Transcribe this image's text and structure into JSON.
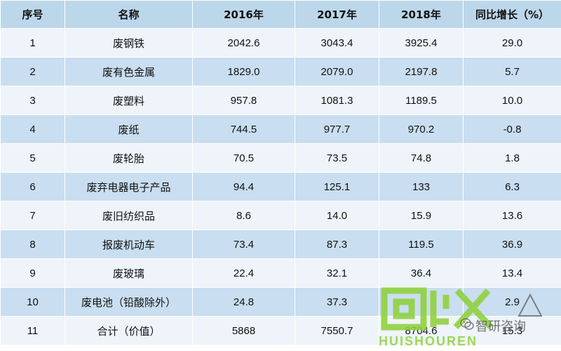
{
  "table": {
    "headers": [
      "序号",
      "名称",
      "2016年",
      "2017年",
      "2018年",
      "同比增长（%）"
    ],
    "rows": [
      [
        "1",
        "废钢铁",
        "2042.6",
        "3043.4",
        "3925.4",
        "29.0"
      ],
      [
        "2",
        "废有色金属",
        "1829.0",
        "2079.0",
        "2197.8",
        "5.7"
      ],
      [
        "3",
        "废塑料",
        "957.8",
        "1081.3",
        "1189.5",
        "10.0"
      ],
      [
        "4",
        "废纸",
        "744.5",
        "977.7",
        "970.2",
        "-0.8"
      ],
      [
        "5",
        "废轮胎",
        "70.5",
        "73.5",
        "74.8",
        "1.8"
      ],
      [
        "6",
        "废弃电器电子产品",
        "94.4",
        "125.1",
        "133",
        "6.3"
      ],
      [
        "7",
        "废旧纺织品",
        "8.6",
        "14.0",
        "15.9",
        "13.6"
      ],
      [
        "8",
        "报废机动车",
        "73.4",
        "87.3",
        "119.5",
        "36.9"
      ],
      [
        "9",
        "废玻璃",
        "22.4",
        "32.1",
        "36.4",
        "13.4"
      ],
      [
        "10",
        "废电池（铅酸除外）",
        "24.8",
        "37.3",
        "",
        "2.9"
      ],
      [
        "11",
        "合计（价值）",
        "5868",
        "7550.7",
        "8704.6",
        "15.3"
      ]
    ]
  },
  "watermark": {
    "logo_text": "回收",
    "brand": "智研咨询",
    "sub_text": "HUISHOUREN"
  },
  "colors": {
    "header_bg": "#bcd7ea",
    "row_light": "#eef4fa",
    "row_dark": "#c9def0",
    "watermark_green": "#8fd13a"
  }
}
